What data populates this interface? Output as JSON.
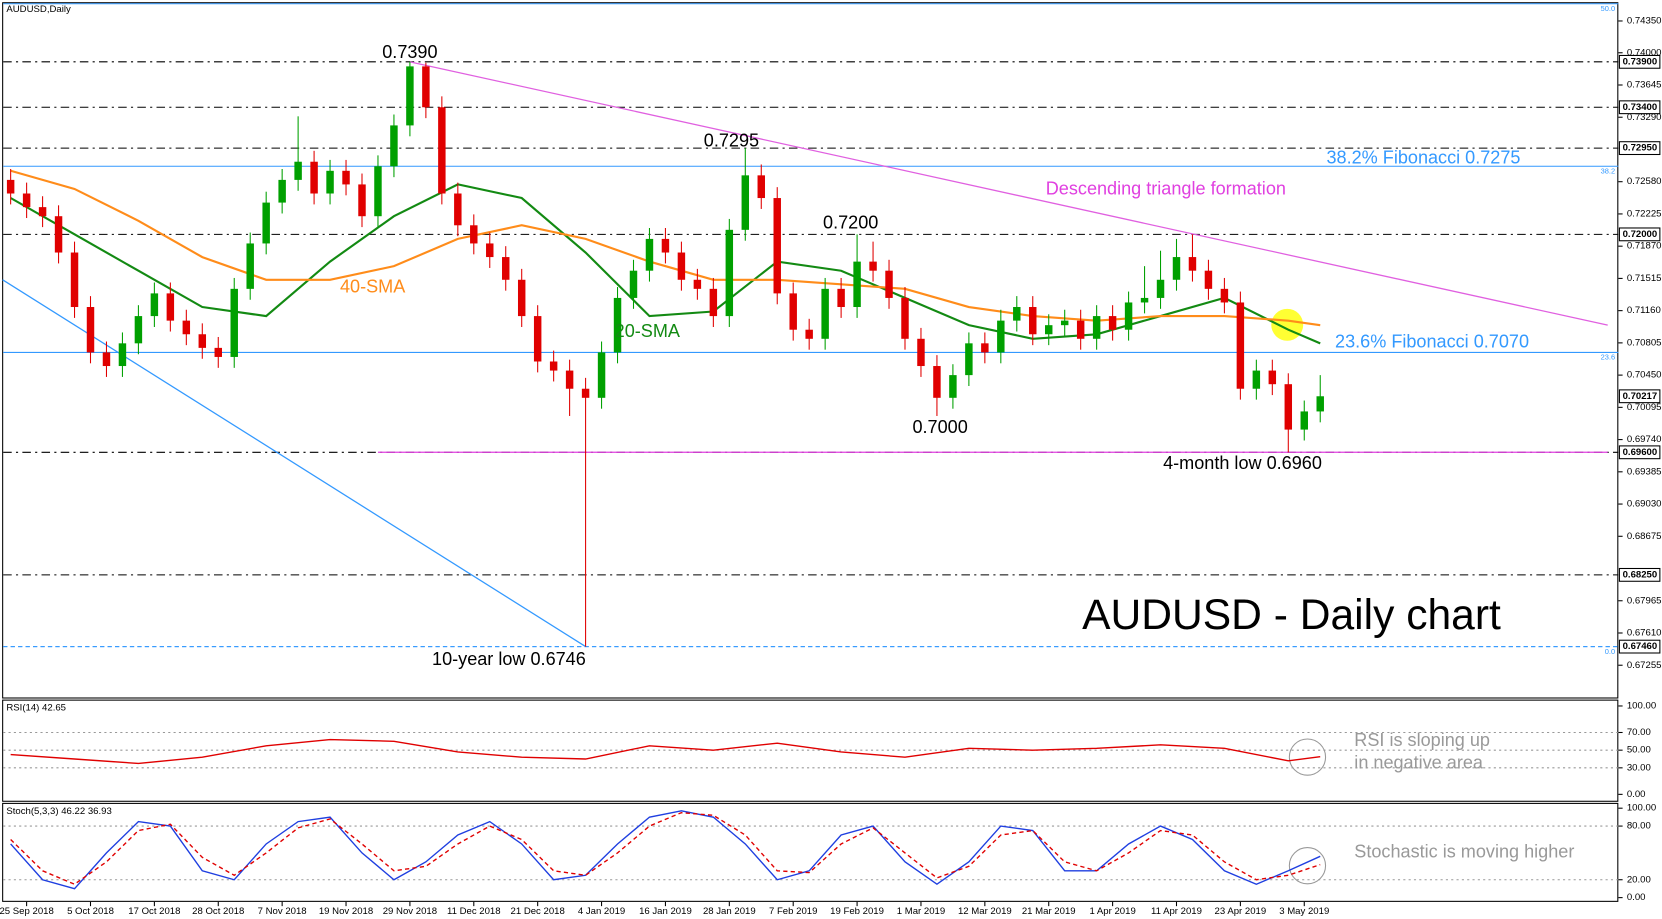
{
  "chart_data": [
    {
      "type": "candlestick",
      "title": "AUDUSD,Daily",
      "categories": [
        null,
        "25 Sep 2018",
        null,
        null,
        null,
        "5 Oct 2018",
        null,
        null,
        null,
        "17 Oct 2018",
        null,
        null,
        null,
        "28 Oct 2018",
        null,
        null,
        null,
        "7 Nov 2018",
        null,
        null,
        null,
        "19 Nov 2018",
        null,
        null,
        null,
        "29 Nov 2018",
        null,
        null,
        null,
        "11 Dec 2018",
        null,
        null,
        null,
        "21 Dec 2018",
        null,
        null,
        null,
        "4 Jan 2019",
        null,
        null,
        null,
        "16 Jan 2019",
        null,
        null,
        null,
        "28 Jan 2019",
        null,
        null,
        null,
        "7 Feb 2019",
        null,
        null,
        null,
        "19 Feb 2019",
        null,
        null,
        null,
        "1 Mar 2019",
        null,
        null,
        null,
        "12 Mar 2019",
        null,
        null,
        null,
        "21 Mar 2019",
        null,
        null,
        null,
        "1 Apr 2019",
        null,
        null,
        null,
        "11 Apr 2019",
        null,
        null,
        null,
        "23 Apr 2019",
        null,
        null,
        null,
        "3 May 2019",
        null
      ],
      "open": [
        0.726,
        0.7245,
        0.723,
        0.722,
        0.718,
        0.712,
        0.707,
        0.7055,
        0.708,
        0.711,
        0.7135,
        0.7105,
        0.709,
        0.7075,
        0.7065,
        0.714,
        0.719,
        0.7235,
        0.726,
        0.728,
        0.7245,
        0.727,
        0.7255,
        0.722,
        0.7275,
        0.732,
        0.7385,
        0.734,
        0.7245,
        0.721,
        0.719,
        0.7175,
        0.715,
        0.711,
        0.706,
        0.705,
        0.703,
        0.702,
        0.707,
        0.713,
        0.716,
        0.7195,
        0.718,
        0.715,
        0.714,
        0.711,
        0.7205,
        0.7265,
        0.724,
        0.7135,
        0.7095,
        0.7085,
        0.714,
        0.712,
        0.717,
        0.716,
        0.713,
        0.7085,
        0.7055,
        0.702,
        0.7045,
        0.708,
        0.707,
        0.7105,
        0.712,
        0.709,
        0.71,
        0.7105,
        0.7085,
        0.711,
        0.7095,
        0.7125,
        0.713,
        0.715,
        0.7175,
        0.716,
        0.714,
        0.7125,
        0.703,
        0.705,
        0.7035,
        0.6985,
        0.7005
      ],
      "high": [
        0.7272,
        0.7257,
        0.7242,
        0.7232,
        0.7192,
        0.7132,
        0.7082,
        0.7092,
        0.7122,
        0.7147,
        0.7147,
        0.7117,
        0.7102,
        0.7087,
        0.7152,
        0.7202,
        0.7247,
        0.7272,
        0.733,
        0.7292,
        0.7282,
        0.7282,
        0.7267,
        0.7287,
        0.7332,
        0.739,
        0.7389,
        0.7352,
        0.7257,
        0.7222,
        0.7202,
        0.7187,
        0.7162,
        0.7122,
        0.7072,
        0.7062,
        0.7042,
        0.7082,
        0.7142,
        0.7172,
        0.7207,
        0.7207,
        0.7192,
        0.7162,
        0.7152,
        0.7217,
        0.7295,
        0.7277,
        0.7252,
        0.7147,
        0.7107,
        0.7152,
        0.7152,
        0.72,
        0.7192,
        0.7172,
        0.7142,
        0.7097,
        0.7067,
        0.7057,
        0.7092,
        0.7092,
        0.7117,
        0.7132,
        0.7132,
        0.7112,
        0.7117,
        0.7117,
        0.7122,
        0.7122,
        0.7137,
        0.7165,
        0.7182,
        0.7195,
        0.72,
        0.7172,
        0.7152,
        0.7137,
        0.7062,
        0.7062,
        0.7047,
        0.7017,
        0.7045
      ],
      "low": [
        0.7233,
        0.7218,
        0.7208,
        0.7168,
        0.7108,
        0.7058,
        0.7043,
        0.7043,
        0.7068,
        0.7098,
        0.7093,
        0.7078,
        0.7063,
        0.7053,
        0.7053,
        0.7128,
        0.7178,
        0.7223,
        0.7248,
        0.7233,
        0.7233,
        0.7243,
        0.7208,
        0.7208,
        0.7263,
        0.7308,
        0.7328,
        0.7233,
        0.7198,
        0.7178,
        0.7163,
        0.7138,
        0.7098,
        0.7048,
        0.7038,
        0.7,
        0.6746,
        0.7008,
        0.7058,
        0.7118,
        0.7148,
        0.7168,
        0.7138,
        0.7128,
        0.7098,
        0.7098,
        0.7193,
        0.7228,
        0.7123,
        0.7083,
        0.7073,
        0.7073,
        0.7108,
        0.7108,
        0.7148,
        0.7118,
        0.7073,
        0.7043,
        0.7,
        0.7008,
        0.7033,
        0.7058,
        0.7058,
        0.7093,
        0.7078,
        0.7078,
        0.7088,
        0.7073,
        0.7073,
        0.7083,
        0.7083,
        0.7113,
        0.7118,
        0.7138,
        0.7148,
        0.7128,
        0.7113,
        0.7018,
        0.7018,
        0.7023,
        0.696,
        0.6973,
        0.6993
      ],
      "close": [
        0.7245,
        0.723,
        0.722,
        0.718,
        0.712,
        0.707,
        0.7055,
        0.708,
        0.711,
        0.7135,
        0.7105,
        0.709,
        0.7075,
        0.7065,
        0.714,
        0.719,
        0.7235,
        0.726,
        0.728,
        0.7245,
        0.727,
        0.7255,
        0.722,
        0.7275,
        0.732,
        0.7385,
        0.734,
        0.7245,
        0.721,
        0.719,
        0.7175,
        0.715,
        0.711,
        0.706,
        0.705,
        0.703,
        0.702,
        0.707,
        0.713,
        0.716,
        0.7195,
        0.718,
        0.715,
        0.714,
        0.711,
        0.7205,
        0.7265,
        0.724,
        0.7135,
        0.7095,
        0.7085,
        0.714,
        0.712,
        0.717,
        0.716,
        0.713,
        0.7085,
        0.7055,
        0.702,
        0.7045,
        0.708,
        0.707,
        0.7105,
        0.712,
        0.709,
        0.71,
        0.7105,
        0.7085,
        0.711,
        0.7095,
        0.7125,
        0.713,
        0.715,
        0.7175,
        0.716,
        0.714,
        0.7125,
        0.703,
        0.705,
        0.7035,
        0.6985,
        0.7005,
        0.70217
      ],
      "up_color": "#00a000",
      "down_color": "#e00000",
      "ylim": [
        0.669,
        0.74545
      ],
      "yticks": [
        {
          "value": 0.7435,
          "label": "0.74350"
        },
        {
          "value": 0.74,
          "label": "0.74000"
        },
        {
          "value": 0.73645,
          "label": "0.73645"
        },
        {
          "value": 0.7329,
          "label": "0.73290"
        },
        {
          "value": 0.7258,
          "label": "0.72580"
        },
        {
          "value": 0.72225,
          "label": "0.72225"
        },
        {
          "value": 0.7187,
          "label": "0.71870"
        },
        {
          "value": 0.71515,
          "label": "0.71515"
        },
        {
          "value": 0.7116,
          "label": "0.71160"
        },
        {
          "value": 0.70805,
          "label": "0.70805"
        },
        {
          "value": 0.7045,
          "label": "0.70450"
        },
        {
          "value": 0.70095,
          "label": "0.70095"
        },
        {
          "value": 0.6974,
          "label": "0.69740"
        },
        {
          "value": 0.69385,
          "label": "0.69385"
        },
        {
          "value": 0.6903,
          "label": "0.69030"
        },
        {
          "value": 0.68675,
          "label": "0.68675"
        },
        {
          "value": 0.67965,
          "label": "0.67965"
        },
        {
          "value": 0.6761,
          "label": "0.67610"
        },
        {
          "value": 0.67255,
          "label": "0.67255"
        }
      ],
      "price_tags": [
        {
          "value": 0.739,
          "label": "0.73900",
          "line": "dashdot"
        },
        {
          "value": 0.734,
          "label": "0.73400",
          "line": "dashdot"
        },
        {
          "value": 0.7295,
          "label": "0.72950",
          "line": "dashdot"
        },
        {
          "value": 0.72,
          "label": "0.72000",
          "line": "dashdot"
        },
        {
          "value": 0.70217,
          "label": "0.70217",
          "line": "none"
        },
        {
          "value": 0.696,
          "label": "0.69600",
          "line": "dashdot"
        },
        {
          "value": 0.6825,
          "label": "0.68250",
          "line": "dashdot"
        },
        {
          "value": 0.6746,
          "label": "0.67460",
          "line": "dashed"
        }
      ],
      "fibonacci": [
        {
          "value": 0.7454,
          "label": "50.0"
        },
        {
          "value": 0.7275,
          "label": "38.2"
        },
        {
          "value": 0.707,
          "label": "23.6"
        },
        {
          "value": 0.6746,
          "label": "0.0"
        }
      ],
      "series": [
        {
          "name": "20-SMA",
          "color": "#138a13",
          "x": [
            0,
            4,
            8,
            12,
            16,
            20,
            24,
            28,
            32,
            36,
            40,
            44,
            48,
            52,
            56,
            60,
            64,
            68,
            72,
            76,
            80,
            82
          ],
          "values": [
            0.724,
            0.72,
            0.716,
            0.712,
            0.711,
            0.717,
            0.722,
            0.7255,
            0.724,
            0.718,
            0.711,
            0.7115,
            0.717,
            0.716,
            0.713,
            0.71,
            0.7085,
            0.709,
            0.711,
            0.713,
            0.7095,
            0.708
          ]
        },
        {
          "name": "40-SMA",
          "color": "#ff8c1a",
          "x": [
            0,
            4,
            8,
            12,
            16,
            20,
            24,
            28,
            32,
            36,
            40,
            44,
            48,
            52,
            56,
            60,
            64,
            68,
            72,
            76,
            80,
            82
          ],
          "values": [
            0.727,
            0.725,
            0.7215,
            0.7175,
            0.715,
            0.715,
            0.7165,
            0.7195,
            0.721,
            0.7195,
            0.717,
            0.715,
            0.715,
            0.7145,
            0.714,
            0.712,
            0.711,
            0.7105,
            0.711,
            0.711,
            0.7105,
            0.71
          ]
        }
      ],
      "trendlines": [
        {
          "color": "#e060e0",
          "x": [
            25,
            100
          ],
          "values": [
            0.739,
            0.71
          ]
        },
        {
          "color": "#3399ff",
          "x": [
            -0.5,
            36
          ],
          "values": [
            0.715,
            0.6746
          ]
        },
        {
          "color": "#e040e0",
          "x": [
            23,
            100
          ],
          "values": [
            0.696,
            0.696
          ]
        }
      ],
      "annotations": [
        {
          "text": "0.7390",
          "color": "#000000"
        },
        {
          "text": "0.7295",
          "color": "#000000"
        },
        {
          "text": "0.7200",
          "color": "#000000"
        },
        {
          "text": "0.7000",
          "color": "#000000"
        },
        {
          "text": "4-month low 0.6960",
          "color": "#000000"
        },
        {
          "text": "10-year low 0.6746",
          "color": "#000000"
        },
        {
          "text": "Descending triangle formation",
          "color": "#e040e0"
        },
        {
          "text": "38.2% Fibonacci 0.7275",
          "color": "#3399ff"
        },
        {
          "text": "23.6% Fibonacci 0.7070",
          "color": "#3399ff"
        },
        {
          "text": "AUDUSD - Daily chart",
          "color": "#000000"
        }
      ]
    },
    {
      "type": "line",
      "title": "RSI(14) 42.65",
      "ylim": [
        0,
        100
      ],
      "yticks": [
        {
          "value": 100,
          "label": "100.00"
        },
        {
          "value": 70,
          "label": "70.00"
        },
        {
          "value": 50,
          "label": "50.00"
        },
        {
          "value": 30,
          "label": "30.00"
        },
        {
          "value": 0,
          "label": "0.00"
        }
      ],
      "levels": [
        30,
        50,
        70
      ],
      "series": [
        {
          "color": "#e00000",
          "x": [
            0,
            4,
            8,
            12,
            16,
            20,
            24,
            28,
            32,
            36,
            40,
            44,
            48,
            52,
            56,
            60,
            64,
            68,
            72,
            76,
            80,
            82
          ],
          "values": [
            45,
            40,
            35,
            42,
            55,
            62,
            60,
            48,
            42,
            40,
            55,
            50,
            58,
            48,
            42,
            52,
            50,
            52,
            56,
            52,
            38,
            42.65
          ]
        }
      ],
      "annotation": [
        "RSI is sloping up",
        "in negative area"
      ]
    },
    {
      "type": "line",
      "title": "Stoch(5,3,3) 46.22 36.93",
      "ylim": [
        0,
        100
      ],
      "yticks": [
        {
          "value": 100,
          "label": "100.00"
        },
        {
          "value": 80,
          "label": "80.00"
        },
        {
          "value": 20,
          "label": "20.00"
        },
        {
          "value": 0,
          "label": "0.00"
        }
      ],
      "levels": [
        20,
        80
      ],
      "series": [
        {
          "color": "#1f3fe0",
          "dash": false,
          "x": [
            0,
            2,
            4,
            6,
            8,
            10,
            12,
            14,
            16,
            18,
            20,
            22,
            24,
            26,
            28,
            30,
            32,
            34,
            36,
            38,
            40,
            42,
            44,
            46,
            48,
            50,
            52,
            54,
            56,
            58,
            60,
            62,
            64,
            66,
            68,
            70,
            72,
            74,
            76,
            78,
            80,
            82
          ],
          "values": [
            60,
            20,
            10,
            50,
            85,
            80,
            30,
            20,
            60,
            85,
            90,
            50,
            20,
            40,
            70,
            85,
            60,
            20,
            25,
            60,
            90,
            97,
            90,
            60,
            20,
            30,
            70,
            80,
            40,
            15,
            40,
            80,
            75,
            30,
            30,
            60,
            80,
            65,
            30,
            15,
            30,
            46.22
          ]
        },
        {
          "color": "#e00000",
          "dash": true,
          "x": [
            0,
            2,
            4,
            6,
            8,
            10,
            12,
            14,
            16,
            18,
            20,
            22,
            24,
            26,
            28,
            30,
            32,
            34,
            36,
            38,
            40,
            42,
            44,
            46,
            48,
            50,
            52,
            54,
            56,
            58,
            60,
            62,
            64,
            66,
            68,
            70,
            72,
            74,
            76,
            78,
            80,
            82
          ],
          "values": [
            65,
            30,
            15,
            40,
            75,
            82,
            45,
            25,
            50,
            78,
            88,
            60,
            30,
            35,
            60,
            80,
            65,
            30,
            25,
            50,
            80,
            95,
            92,
            70,
            30,
            28,
            60,
            78,
            50,
            22,
            35,
            70,
            75,
            40,
            30,
            50,
            75,
            70,
            40,
            20,
            25,
            36.93
          ]
        }
      ],
      "annotation": [
        "Stochastic is moving higher"
      ]
    }
  ]
}
